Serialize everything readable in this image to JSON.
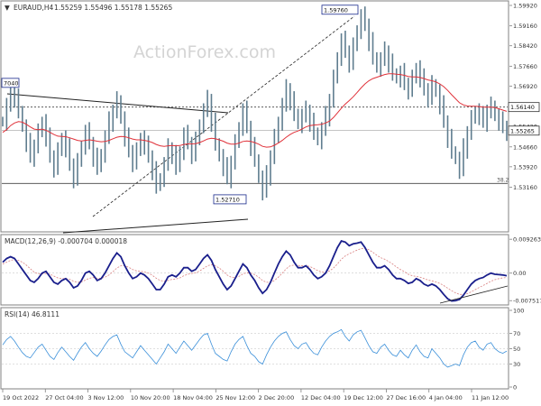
{
  "header": {
    "symbol": "EURAUD,H4",
    "ohlc": "1.55259 1.55496 1.55178 1.55265"
  },
  "watermark": "ActionForex.com",
  "colors": {
    "bar": "#5f7d8f",
    "ma": "#e0323a",
    "macd": "#1a1f8c",
    "signal": "#d98080",
    "rsi": "#3a8fd9",
    "grid": "#c8c8c8",
    "frame": "#808080",
    "text": "#333333"
  },
  "chart_data": [
    {
      "type": "candlestick",
      "panel": "price",
      "ylim": [
        1.516,
        1.5992
      ],
      "y_ticks": [
        "1.59920",
        "1.59160",
        "1.58420",
        "1.57660",
        "1.56920",
        "1.56140",
        "1.55420",
        "1.54660",
        "1.53920",
        "1.53160"
      ],
      "current_price_label": "1.55265",
      "current_price": 1.55265,
      "horizontal_levels": [
        {
          "label": "1.56140",
          "value": 1.5614
        },
        {
          "label": "38.2",
          "value": 1.533
        }
      ],
      "annotations": [
        {
          "label": "1.59760",
          "value": 1.5976
        },
        {
          "label": "1.52710",
          "value": 1.5271
        },
        {
          "label": "7040",
          "value": 1.5704
        }
      ],
      "series": [
        {
          "values": [
            1.556,
            1.562,
            1.568,
            1.565,
            1.56,
            1.554,
            1.548,
            1.543,
            1.547,
            1.552,
            1.556,
            1.55,
            1.543,
            1.539,
            1.545,
            1.55,
            1.546,
            1.54,
            1.535,
            1.541,
            1.547,
            1.552,
            1.548,
            1.543,
            1.539,
            1.544,
            1.55,
            1.556,
            1.56,
            1.564,
            1.557,
            1.55,
            1.545,
            1.541,
            1.545,
            1.55,
            1.547,
            1.543,
            1.538,
            1.532,
            1.535,
            1.54,
            1.546,
            1.544,
            1.539,
            1.545,
            1.551,
            1.548,
            1.544,
            1.549,
            1.555,
            1.56,
            1.564,
            1.556,
            1.548,
            1.543,
            1.539,
            1.535,
            1.541,
            1.548,
            1.554,
            1.56,
            1.554,
            1.547,
            1.542,
            1.535,
            1.53,
            1.536,
            1.543,
            1.55,
            1.556,
            1.562,
            1.568,
            1.564,
            1.559,
            1.555,
            1.558,
            1.56,
            1.556,
            1.552,
            1.549,
            1.553,
            1.558,
            1.564,
            1.572,
            1.58,
            1.586,
            1.582,
            1.578,
            1.584,
            1.59,
            1.595,
            1.592,
            1.586,
            1.58,
            1.576,
            1.579,
            1.582,
            1.578,
            1.574,
            1.572,
            1.574,
            1.57,
            1.568,
            1.572,
            1.576,
            1.572,
            1.568,
            1.565,
            1.57,
            1.567,
            1.562,
            1.556,
            1.55,
            1.545,
            1.542,
            1.538,
            1.546,
            1.552,
            1.557,
            1.56,
            1.558,
            1.556,
            1.56,
            1.562,
            1.558,
            1.556,
            1.554,
            1.5526
          ]
        },
        {
          "name": "",
          "values": [
            1.552,
            1.553,
            1.5545,
            1.5555,
            1.556,
            1.5558,
            1.555,
            1.554,
            1.5532,
            1.553,
            1.5532,
            1.5528,
            1.552,
            1.5512,
            1.5506,
            1.5505,
            1.5504,
            1.55,
            1.5495,
            1.549,
            1.5488,
            1.549,
            1.5492,
            1.549,
            1.5487,
            1.5485,
            1.5486,
            1.549,
            1.5496,
            1.5502,
            1.5505,
            1.5504,
            1.55,
            1.5495,
            1.5492,
            1.5492,
            1.549,
            1.5487,
            1.5482,
            1.5475,
            1.547,
            1.5468,
            1.547,
            1.5471,
            1.547,
            1.5471,
            1.5475,
            1.5477,
            1.5477,
            1.5478,
            1.5482,
            1.5488,
            1.5495,
            1.5498,
            1.5496,
            1.5492,
            1.5487,
            1.548,
            1.5476,
            1.5476,
            1.548,
            1.5486,
            1.5488,
            1.5486,
            1.5482,
            1.5476,
            1.5468,
            1.5465,
            1.5466,
            1.5472,
            1.548,
            1.549,
            1.5502,
            1.5512,
            1.552,
            1.5525,
            1.5532,
            1.554,
            1.5545,
            1.5547,
            1.5548,
            1.555,
            1.5555,
            1.5562,
            1.5575,
            1.5592,
            1.561,
            1.5625,
            1.5638,
            1.5652,
            1.5668,
            1.5685,
            1.57,
            1.5712,
            1.572,
            1.5725,
            1.573,
            1.5735,
            1.5738,
            1.5738,
            1.5736,
            1.5735,
            1.5732,
            1.5728,
            1.5726,
            1.5726,
            1.5724,
            1.572,
            1.5715,
            1.5712,
            1.5708,
            1.57,
            1.569,
            1.5676,
            1.566,
            1.5645,
            1.563,
            1.5622,
            1.5618,
            1.5617,
            1.5617,
            1.5616,
            1.5614,
            1.5614,
            1.5614,
            1.5612,
            1.5608,
            1.5603,
            1.5598
          ]
        }
      ]
    },
    {
      "type": "line",
      "panel": "macd",
      "title": "MACD(12,26,9) -0.000704 0.000018",
      "ylim": [
        -0.0082,
        0.0098
      ],
      "y_ticks": [
        "0.009263",
        "0.00",
        "-0.007517"
      ],
      "series": [
        {
          "values": [
            0.003,
            0.004,
            0.0045,
            0.004,
            0.0025,
            0.001,
            -0.0005,
            -0.002,
            -0.0025,
            -0.0015,
            0.0,
            0.0005,
            -0.001,
            -0.0025,
            -0.003,
            -0.002,
            -0.0015,
            -0.0025,
            -0.004,
            -0.0035,
            -0.002,
            0.0,
            0.0005,
            -0.0005,
            -0.002,
            -0.0015,
            0.0,
            0.002,
            0.004,
            0.0055,
            0.0045,
            0.002,
            0.0,
            -0.0015,
            -0.001,
            0.0,
            -0.0005,
            -0.0015,
            -0.003,
            -0.0045,
            -0.0045,
            -0.003,
            -0.001,
            -0.0005,
            -0.001,
            0.0,
            0.0015,
            0.0015,
            0.0005,
            0.001,
            0.0025,
            0.004,
            0.005,
            0.0035,
            0.001,
            -0.001,
            -0.003,
            -0.0045,
            -0.0035,
            -0.0015,
            0.0005,
            0.0025,
            0.0015,
            -0.0005,
            -0.002,
            -0.004,
            -0.0055,
            -0.0045,
            -0.0025,
            0.0,
            0.0025,
            0.0045,
            0.006,
            0.005,
            0.003,
            0.0015,
            0.0015,
            0.002,
            0.001,
            -0.0005,
            -0.0015,
            -0.001,
            0.0,
            0.002,
            0.0045,
            0.007,
            0.0088,
            0.0085,
            0.0075,
            0.008,
            0.0082,
            0.0085,
            0.007,
            0.005,
            0.003,
            0.0015,
            0.0015,
            0.002,
            0.001,
            -0.0005,
            -0.0015,
            -0.0015,
            -0.002,
            -0.0028,
            -0.0025,
            -0.0015,
            -0.002,
            -0.003,
            -0.0035,
            -0.003,
            -0.0035,
            -0.0045,
            -0.0058,
            -0.007,
            -0.0076,
            -0.0075,
            -0.0072,
            -0.006,
            -0.0045,
            -0.003,
            -0.002,
            -0.0015,
            -0.0012,
            -0.0005,
            0.0,
            -0.0003,
            -0.0004,
            -0.0005,
            -0.0007
          ]
        },
        {
          "values": [
            0.0025,
            0.003,
            0.0035,
            0.0037,
            0.0035,
            0.003,
            0.0022,
            0.0012,
            0.0003,
            -0.0002,
            -0.0002,
            -0.0001,
            -0.0003,
            -0.0008,
            -0.0013,
            -0.0015,
            -0.0015,
            -0.0017,
            -0.0022,
            -0.0025,
            -0.0024,
            -0.0019,
            -0.0014,
            -0.0012,
            -0.0014,
            -0.0014,
            -0.0011,
            -0.0005,
            0.0004,
            0.0014,
            0.002,
            0.002,
            0.0016,
            0.001,
            0.0006,
            0.0005,
            0.0003,
            0.0,
            -0.0006,
            -0.0014,
            -0.002,
            -0.0022,
            -0.002,
            -0.0017,
            -0.0016,
            -0.0013,
            -0.0007,
            -0.0003,
            -0.0001,
            0.0001,
            0.0006,
            0.0013,
            0.002,
            0.0023,
            0.002,
            0.0014,
            0.0005,
            -0.0005,
            -0.0011,
            -0.0012,
            -0.0009,
            -0.0002,
            0.0001,
            0.0,
            -0.0004,
            -0.0011,
            -0.002,
            -0.0025,
            -0.0025,
            -0.002,
            -0.0011,
            0.0,
            0.0012,
            0.002,
            0.0022,
            0.0021,
            0.002,
            0.002,
            0.0018,
            0.0013,
            0.0007,
            0.0003,
            0.0002,
            0.0006,
            0.0014,
            0.0025,
            0.0038,
            0.0047,
            0.0053,
            0.0058,
            0.0063,
            0.0067,
            0.0068,
            0.0064,
            0.0057,
            0.0049,
            0.0042,
            0.0038,
            0.0032,
            0.0025,
            0.0017,
            0.001,
            0.0004,
            -0.0003,
            -0.0007,
            -0.0009,
            -0.0011,
            -0.0015,
            -0.0019,
            -0.0021,
            -0.0024,
            -0.0028,
            -0.0034,
            -0.0041,
            -0.0048,
            -0.0054,
            -0.0058,
            -0.0058,
            -0.0056,
            -0.0051,
            -0.0045,
            -0.0039,
            -0.0034,
            -0.0028,
            -0.0022,
            -0.0018,
            -0.0015,
            -0.0013,
            -0.0012
          ]
        }
      ]
    },
    {
      "type": "line",
      "panel": "rsi",
      "title": "RSI(14) 46.8111",
      "ylim": [
        0,
        100
      ],
      "y_ticks": [
        "100",
        "70",
        "50",
        "30",
        "0"
      ],
      "levels": [
        70,
        50,
        30
      ],
      "series": [
        {
          "values": [
            55,
            62,
            66,
            60,
            52,
            45,
            40,
            38,
            45,
            52,
            56,
            48,
            40,
            36,
            45,
            52,
            46,
            40,
            35,
            44,
            52,
            58,
            50,
            44,
            40,
            47,
            55,
            62,
            66,
            68,
            56,
            46,
            42,
            38,
            46,
            54,
            48,
            42,
            36,
            30,
            38,
            46,
            56,
            50,
            44,
            52,
            60,
            54,
            48,
            55,
            62,
            68,
            70,
            56,
            44,
            40,
            36,
            34,
            46,
            56,
            62,
            66,
            54,
            44,
            40,
            33,
            30,
            42,
            52,
            60,
            66,
            70,
            72,
            62,
            54,
            50,
            56,
            58,
            50,
            44,
            42,
            52,
            60,
            66,
            70,
            72,
            75,
            66,
            60,
            68,
            72,
            74,
            64,
            54,
            46,
            44,
            52,
            56,
            48,
            42,
            40,
            48,
            42,
            38,
            48,
            55,
            46,
            40,
            38,
            50,
            44,
            38,
            30,
            26,
            28,
            30,
            28,
            42,
            52,
            58,
            60,
            52,
            48,
            56,
            58,
            50,
            46,
            44,
            47
          ]
        }
      ]
    }
  ],
  "x_axis": {
    "labels": [
      "19 Oct 2022",
      "27 Oct 04:00",
      "3 Nov 12:00",
      "10 Nov 20:00",
      "18 Nov 04:00",
      "25 Nov 12:00",
      "2 Dec 20:00",
      "12 Dec 04:00",
      "19 Dec 12:00",
      "27 Dec 16:00",
      "4 Jan 04:00",
      "11 Jan 12:00"
    ]
  }
}
